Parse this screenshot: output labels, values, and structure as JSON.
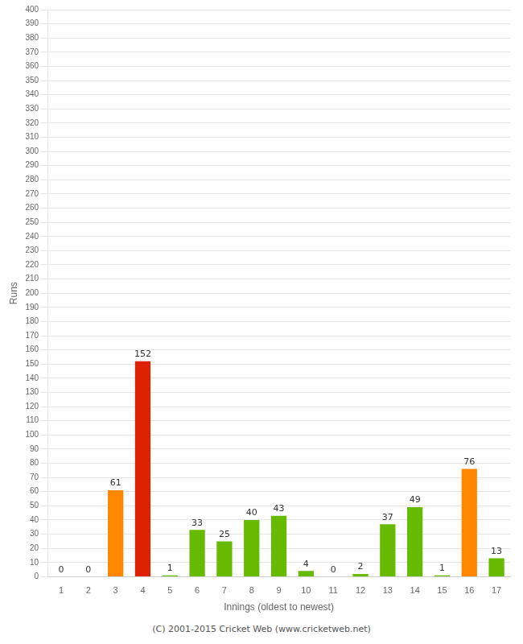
{
  "chart_data": {
    "type": "bar",
    "xlabel": "Innings (oldest to newest)",
    "ylabel": "Runs",
    "categories": [
      "1",
      "2",
      "3",
      "4",
      "5",
      "6",
      "7",
      "8",
      "9",
      "10",
      "11",
      "12",
      "13",
      "14",
      "15",
      "16",
      "17"
    ],
    "values": [
      0,
      0,
      61,
      152,
      1,
      33,
      25,
      40,
      43,
      4,
      0,
      2,
      37,
      49,
      1,
      76,
      13
    ],
    "colors": [
      "#66bb00",
      "#66bb00",
      "#ff8800",
      "#dd2200",
      "#66bb00",
      "#66bb00",
      "#66bb00",
      "#66bb00",
      "#66bb00",
      "#66bb00",
      "#66bb00",
      "#66bb00",
      "#66bb00",
      "#66bb00",
      "#66bb00",
      "#ff8800",
      "#66bb00"
    ],
    "ylim": [
      0,
      400
    ],
    "yticks": [
      0,
      10,
      20,
      30,
      40,
      50,
      60,
      70,
      80,
      90,
      100,
      110,
      120,
      130,
      140,
      150,
      160,
      170,
      180,
      190,
      200,
      210,
      220,
      230,
      240,
      250,
      260,
      270,
      280,
      290,
      300,
      310,
      320,
      330,
      340,
      350,
      360,
      370,
      380,
      390,
      400
    ],
    "grid": true,
    "data_labels": true,
    "annotations": [
      "(C) 2001-2015 Cricket Web (www.cricketweb.net)"
    ]
  }
}
